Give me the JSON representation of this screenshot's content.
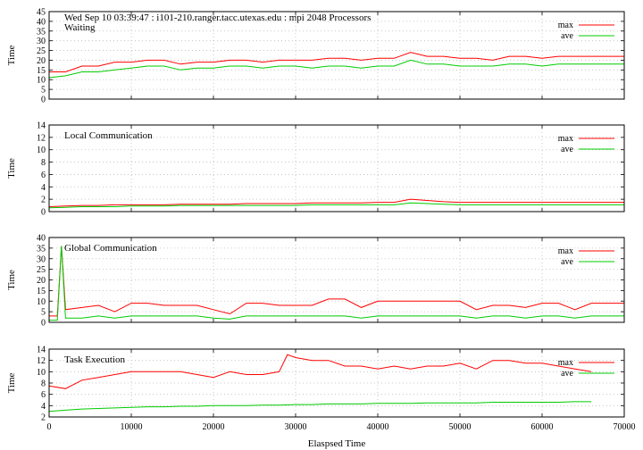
{
  "header": "Wed Sep 10 03:39:47 : i101-210.ranger.tacc.utexas.edu : mpi 2048 Processors",
  "xlabel": "Elaspsed Time",
  "colors": {
    "max": "#ff0000",
    "ave": "#00cc00",
    "grid": "#bbbbbb"
  },
  "chart_data": [
    {
      "type": "line",
      "title": "Waiting",
      "ylabel": "Time",
      "xlim": [
        0,
        70000
      ],
      "ylim": [
        0,
        45
      ],
      "yticks": [
        0,
        5,
        10,
        15,
        20,
        25,
        30,
        35,
        40,
        45
      ],
      "xticks": [
        0,
        10000,
        20000,
        30000,
        40000,
        50000,
        60000,
        70000
      ],
      "series": [
        {
          "name": "max",
          "x": [
            0,
            2000,
            4000,
            6000,
            8000,
            10000,
            12000,
            14000,
            16000,
            18000,
            20000,
            22000,
            24000,
            26000,
            28000,
            30000,
            32000,
            34000,
            36000,
            38000,
            40000,
            42000,
            44000,
            46000,
            48000,
            50000,
            52000,
            54000,
            56000,
            58000,
            60000,
            62000,
            64000,
            66000,
            68000,
            70000
          ],
          "y": [
            14,
            14,
            17,
            17,
            19,
            19,
            20,
            20,
            18,
            19,
            19,
            20,
            20,
            19,
            20,
            20,
            20,
            21,
            21,
            20,
            21,
            21,
            24,
            22,
            22,
            21,
            21,
            20,
            22,
            22,
            21,
            22,
            22,
            22,
            22,
            22
          ]
        },
        {
          "name": "ave",
          "x": [
            0,
            2000,
            4000,
            6000,
            8000,
            10000,
            12000,
            14000,
            16000,
            18000,
            20000,
            22000,
            24000,
            26000,
            28000,
            30000,
            32000,
            34000,
            36000,
            38000,
            40000,
            42000,
            44000,
            46000,
            48000,
            50000,
            52000,
            54000,
            56000,
            58000,
            60000,
            62000,
            64000,
            66000,
            68000,
            70000
          ],
          "y": [
            11,
            12,
            14,
            14,
            15,
            16,
            17,
            17,
            15,
            16,
            16,
            17,
            17,
            16,
            17,
            17,
            16,
            17,
            17,
            16,
            17,
            17,
            20,
            18,
            18,
            17,
            17,
            17,
            18,
            18,
            17,
            18,
            18,
            18,
            18,
            18
          ]
        }
      ]
    },
    {
      "type": "line",
      "title": "Local Communication",
      "ylabel": "Time",
      "xlim": [
        0,
        70000
      ],
      "ylim": [
        0,
        14
      ],
      "yticks": [
        0,
        2,
        4,
        6,
        8,
        10,
        12,
        14
      ],
      "xticks": [
        0,
        10000,
        20000,
        30000,
        40000,
        50000,
        60000,
        70000
      ],
      "series": [
        {
          "name": "max",
          "x": [
            0,
            2000,
            4000,
            6000,
            8000,
            10000,
            12000,
            14000,
            16000,
            18000,
            20000,
            22000,
            24000,
            26000,
            28000,
            30000,
            32000,
            34000,
            36000,
            38000,
            40000,
            42000,
            44000,
            46000,
            48000,
            50000,
            52000,
            54000,
            56000,
            58000,
            60000,
            62000,
            64000,
            66000,
            68000,
            70000
          ],
          "y": [
            0.8,
            0.9,
            1.0,
            1.0,
            1.1,
            1.1,
            1.1,
            1.1,
            1.2,
            1.2,
            1.2,
            1.2,
            1.3,
            1.3,
            1.3,
            1.3,
            1.4,
            1.4,
            1.4,
            1.4,
            1.5,
            1.5,
            2.0,
            1.8,
            1.6,
            1.5,
            1.5,
            1.5,
            1.5,
            1.5,
            1.5,
            1.5,
            1.5,
            1.5,
            1.5,
            1.5
          ]
        },
        {
          "name": "ave",
          "x": [
            0,
            2000,
            4000,
            6000,
            8000,
            10000,
            12000,
            14000,
            16000,
            18000,
            20000,
            22000,
            24000,
            26000,
            28000,
            30000,
            32000,
            34000,
            36000,
            38000,
            40000,
            42000,
            44000,
            46000,
            48000,
            50000,
            52000,
            54000,
            56000,
            58000,
            60000,
            62000,
            64000,
            66000,
            68000,
            70000
          ],
          "y": [
            0.6,
            0.7,
            0.8,
            0.8,
            0.8,
            0.9,
            0.9,
            0.9,
            1.0,
            1.0,
            1.0,
            1.0,
            1.0,
            1.0,
            1.0,
            1.0,
            1.1,
            1.1,
            1.1,
            1.1,
            1.1,
            1.1,
            1.4,
            1.3,
            1.2,
            1.1,
            1.1,
            1.1,
            1.1,
            1.1,
            1.1,
            1.1,
            1.1,
            1.1,
            1.1,
            1.1
          ]
        }
      ]
    },
    {
      "type": "line",
      "title": "Global Communication",
      "ylabel": "Time",
      "xlim": [
        0,
        70000
      ],
      "ylim": [
        0,
        40
      ],
      "yticks": [
        0,
        5,
        10,
        15,
        20,
        25,
        30,
        35,
        40
      ],
      "xticks": [
        0,
        10000,
        20000,
        30000,
        40000,
        50000,
        60000,
        70000
      ],
      "series": [
        {
          "name": "max",
          "x": [
            0,
            1000,
            1500,
            2000,
            4000,
            6000,
            8000,
            10000,
            12000,
            14000,
            16000,
            18000,
            20000,
            22000,
            24000,
            26000,
            28000,
            30000,
            32000,
            34000,
            36000,
            38000,
            40000,
            42000,
            44000,
            46000,
            48000,
            50000,
            52000,
            54000,
            56000,
            58000,
            60000,
            62000,
            64000,
            66000,
            68000,
            70000
          ],
          "y": [
            3,
            3,
            36,
            6,
            7,
            8,
            5,
            9,
            9,
            8,
            8,
            8,
            6,
            4,
            9,
            9,
            8,
            8,
            8,
            11,
            11,
            7,
            10,
            10,
            10,
            10,
            10,
            10,
            6,
            8,
            8,
            7,
            9,
            9,
            6,
            9,
            9,
            9
          ]
        },
        {
          "name": "ave",
          "x": [
            0,
            1000,
            1500,
            2000,
            4000,
            6000,
            8000,
            10000,
            12000,
            14000,
            16000,
            18000,
            20000,
            22000,
            24000,
            26000,
            28000,
            30000,
            32000,
            34000,
            36000,
            38000,
            40000,
            42000,
            44000,
            46000,
            48000,
            50000,
            52000,
            54000,
            56000,
            58000,
            60000,
            62000,
            64000,
            66000,
            68000,
            70000
          ],
          "y": [
            1,
            1,
            36,
            2,
            2,
            3,
            2,
            3,
            3,
            3,
            3,
            3,
            2,
            1.5,
            3,
            3,
            3,
            3,
            3,
            3,
            3,
            2,
            3,
            3,
            3,
            3,
            3,
            3,
            2,
            3,
            3,
            2,
            3,
            3,
            2,
            3,
            3,
            3
          ]
        }
      ]
    },
    {
      "type": "line",
      "title": "Task Execution",
      "ylabel": "Time",
      "xlim": [
        0,
        70000
      ],
      "ylim": [
        2,
        14
      ],
      "yticks": [
        2,
        4,
        6,
        8,
        10,
        12,
        14
      ],
      "xticks": [
        0,
        10000,
        20000,
        30000,
        40000,
        50000,
        60000,
        70000
      ],
      "xticklabels": [
        "0",
        "10000",
        "20000",
        "30000",
        "40000",
        "50000",
        "60000",
        "70000"
      ],
      "series": [
        {
          "name": "max",
          "x": [
            0,
            2000,
            4000,
            6000,
            8000,
            10000,
            12000,
            14000,
            16000,
            18000,
            20000,
            22000,
            24000,
            26000,
            28000,
            29000,
            30000,
            32000,
            34000,
            36000,
            38000,
            40000,
            42000,
            44000,
            46000,
            48000,
            50000,
            52000,
            54000,
            56000,
            58000,
            60000,
            62000,
            64000,
            66000
          ],
          "y": [
            7.5,
            7,
            8.5,
            9,
            9.5,
            10,
            10,
            10,
            10,
            9.5,
            9,
            10,
            9.5,
            9.5,
            10,
            13,
            12.5,
            12,
            12,
            11,
            11,
            10.5,
            11,
            10.5,
            11,
            11,
            11.5,
            10.5,
            12,
            12,
            11.5,
            11.5,
            11,
            10.5,
            10
          ]
        },
        {
          "name": "ave",
          "x": [
            0,
            2000,
            4000,
            6000,
            8000,
            10000,
            12000,
            14000,
            16000,
            18000,
            20000,
            22000,
            24000,
            26000,
            28000,
            30000,
            32000,
            34000,
            36000,
            38000,
            40000,
            42000,
            44000,
            46000,
            48000,
            50000,
            52000,
            54000,
            56000,
            58000,
            60000,
            62000,
            64000,
            66000
          ],
          "y": [
            3,
            3.2,
            3.4,
            3.5,
            3.6,
            3.7,
            3.8,
            3.8,
            3.9,
            3.9,
            4,
            4,
            4,
            4.1,
            4.1,
            4.2,
            4.2,
            4.3,
            4.3,
            4.3,
            4.4,
            4.4,
            4.4,
            4.5,
            4.5,
            4.5,
            4.5,
            4.6,
            4.6,
            4.6,
            4.6,
            4.6,
            4.7,
            4.7
          ]
        }
      ]
    }
  ]
}
